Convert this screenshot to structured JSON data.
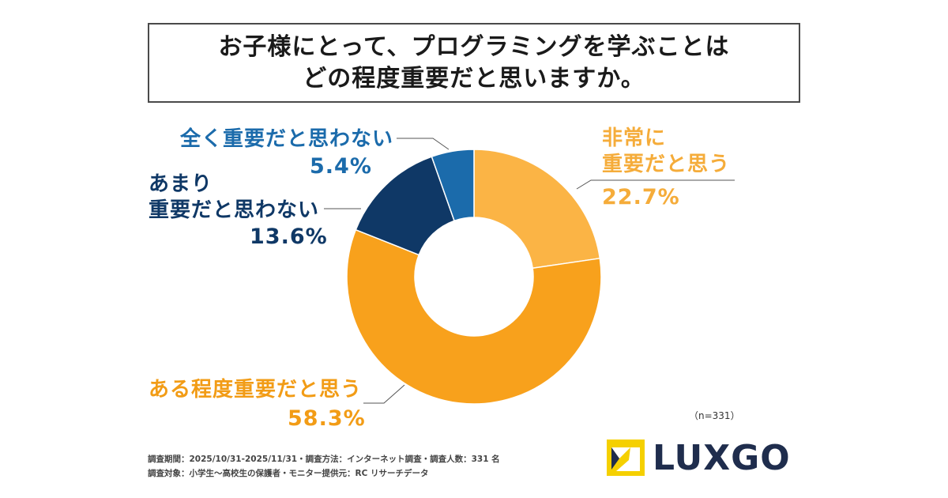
{
  "title": {
    "line1": "お子様にとって、プログラミングを学ぶことは",
    "line2": "どの程度重要だと思いますか。"
  },
  "chart_data": {
    "type": "pie",
    "title": "お子様にとって、プログラミングを学ぶことはどの程度重要だと思いますか。",
    "donut": true,
    "categories": [
      "非常に重要だと思う",
      "ある程度重要だと思う",
      "あまり重要だと思わない",
      "全く重要だと思わない"
    ],
    "values": [
      22.7,
      58.3,
      13.6,
      5.4
    ],
    "colors": [
      "#fbb445",
      "#f8a11c",
      "#0f3866",
      "#1b6bab"
    ]
  },
  "labels": {
    "very": {
      "line1": "非常に",
      "line2": "重要だと思う",
      "value": "22.7%"
    },
    "somewhat": {
      "line1": "ある程度重要だと思う",
      "value": "58.3%"
    },
    "notvery": {
      "line1": "あまり",
      "line2": "重要だと思わない",
      "value": "13.6%"
    },
    "notatall": {
      "line1": "全く重要だと思わない",
      "value": "5.4%"
    }
  },
  "sample": "（n=331）",
  "footer": {
    "line1": "調査期間：2025/10/31-2025/11/31・調査方法：インターネット調査・調査人数：331 名",
    "line2": "調査対象：小学生〜高校生の保護者・モニター提供元：RC リサーチデータ"
  },
  "logo": {
    "text": "LUXGO",
    "mark_color": "#f5d000",
    "text_color": "#1f2d4d"
  }
}
